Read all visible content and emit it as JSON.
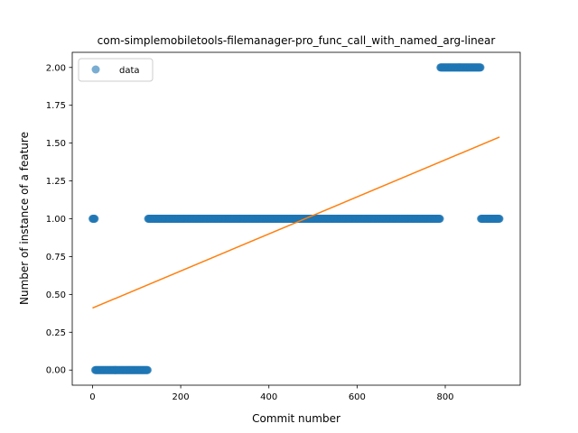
{
  "chart_data": {
    "type": "scatter",
    "title": "com-simplemobiletools-filemanager-pro_func_call_with_named_arg-linear",
    "xlabel": "Commit number",
    "ylabel": "Number of instance of a feature",
    "xlim": [
      -46,
      970
    ],
    "ylim": [
      -0.1,
      2.1
    ],
    "xticks": [
      0,
      200,
      400,
      600,
      800
    ],
    "yticks": [
      0.0,
      0.25,
      0.5,
      0.75,
      1.0,
      1.25,
      1.5,
      1.75,
      2.0
    ],
    "ytick_labels": [
      "0.00",
      "0.25",
      "0.50",
      "0.75",
      "1.00",
      "1.25",
      "1.50",
      "1.75",
      "2.00"
    ],
    "grid": false,
    "legend": {
      "position": "top-left",
      "entries": [
        "data"
      ]
    },
    "series": [
      {
        "name": "data",
        "kind": "points",
        "color": "#1f77b4",
        "segments": [
          {
            "x_start": 0,
            "x_end": 5,
            "y": 1
          },
          {
            "x_start": 6,
            "x_end": 125,
            "y": 0
          },
          {
            "x_start": 126,
            "x_end": 788,
            "y": 1
          },
          {
            "x_start": 789,
            "x_end": 880,
            "y": 2
          },
          {
            "x_start": 881,
            "x_end": 923,
            "y": 1
          }
        ]
      },
      {
        "name": "",
        "kind": "line",
        "color": "#ff7f0e",
        "x": [
          0,
          923
        ],
        "y": [
          0.41,
          1.54
        ]
      }
    ]
  }
}
